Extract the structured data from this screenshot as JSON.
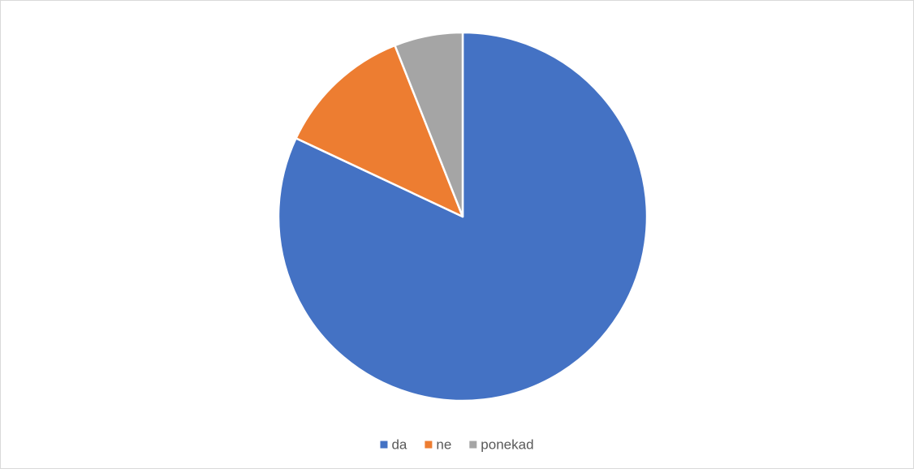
{
  "chart_data": {
    "type": "pie",
    "categories": [
      "da",
      "ne",
      "ponekad"
    ],
    "values": [
      82,
      12,
      6
    ],
    "colors": [
      "#4472c4",
      "#ed7d31",
      "#a5a5a5"
    ],
    "legend": "bottom"
  }
}
